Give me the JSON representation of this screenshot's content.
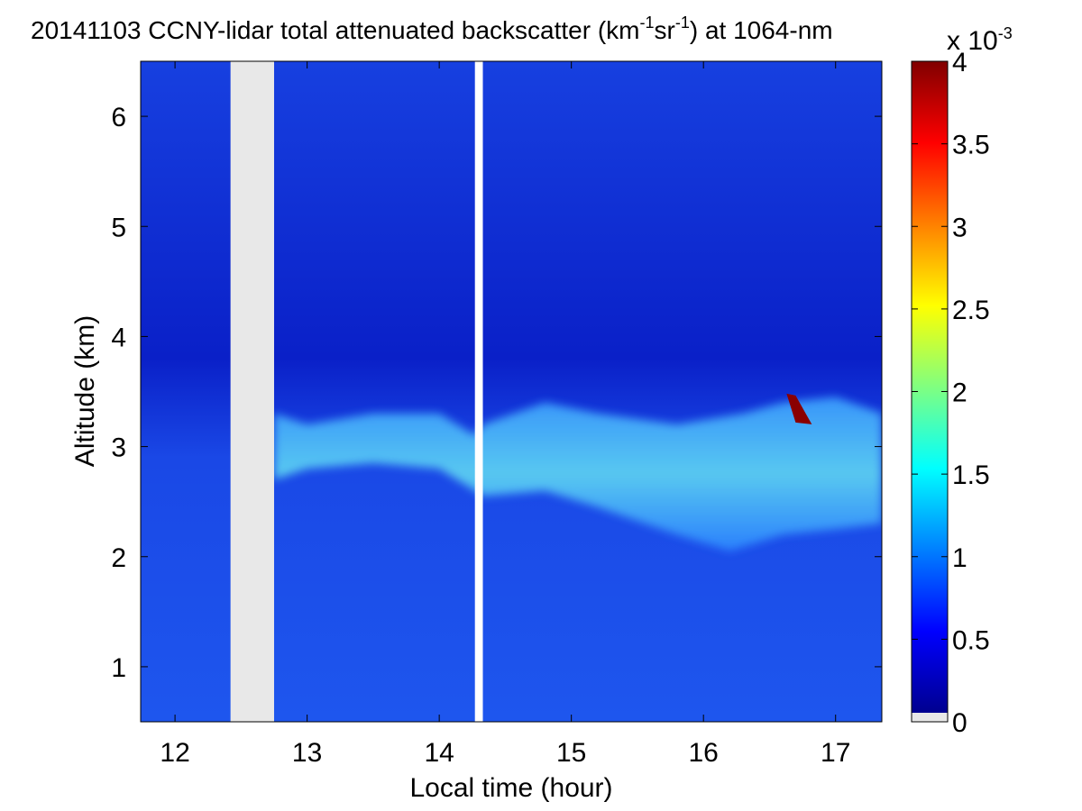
{
  "chart_data": {
    "type": "heatmap",
    "title": {
      "date": "20141103",
      "prefix": "CCNY-lidar total attenuated backscatter (km",
      "sup1": "-1",
      "mid": "sr",
      "sup2": "-1",
      "suffix": ") at 1064-nm"
    },
    "xlabel": "Local time (hour)",
    "ylabel": "Altitude (km)",
    "xlim": [
      11.74,
      17.35
    ],
    "ylim": [
      0.5,
      6.5
    ],
    "x_ticks": [
      12,
      13,
      14,
      15,
      16,
      17
    ],
    "y_ticks": [
      1,
      2,
      3,
      4,
      5,
      6
    ],
    "data_gaps_hours": [
      [
        12.42,
        12.75
      ],
      [
        14.27,
        14.33
      ]
    ],
    "colorbar": {
      "colormap": "jet",
      "range": [
        0,
        4
      ],
      "ticks": [
        "0",
        "0.5",
        "1",
        "1.5",
        "2",
        "2.5",
        "3",
        "3.5",
        "4"
      ],
      "tick_values": [
        0,
        0.5,
        1,
        1.5,
        2,
        2.5,
        3,
        3.5,
        4
      ],
      "exponent_base": "x 10",
      "exponent_power": "-3",
      "nodata_color": "#e8e8e8"
    },
    "aerosol_layer_top_km": [
      [
        12.75,
        3.3
      ],
      [
        13.0,
        3.2
      ],
      [
        13.5,
        3.3
      ],
      [
        14.0,
        3.3
      ],
      [
        14.27,
        3.1
      ],
      [
        14.33,
        3.2
      ],
      [
        14.8,
        3.4
      ],
      [
        15.2,
        3.3
      ],
      [
        15.8,
        3.2
      ],
      [
        16.3,
        3.3
      ],
      [
        16.6,
        3.4
      ],
      [
        17.0,
        3.45
      ],
      [
        17.35,
        3.3
      ]
    ],
    "aerosol_layer_bottom_km": [
      [
        12.75,
        2.7
      ],
      [
        13.0,
        2.8
      ],
      [
        13.5,
        2.85
      ],
      [
        14.0,
        2.8
      ],
      [
        14.27,
        2.6
      ],
      [
        14.33,
        2.55
      ],
      [
        14.8,
        2.6
      ],
      [
        15.2,
        2.45
      ],
      [
        15.8,
        2.2
      ],
      [
        16.2,
        2.05
      ],
      [
        16.6,
        2.2
      ],
      [
        17.0,
        2.25
      ],
      [
        17.35,
        2.3
      ]
    ],
    "peak_feature": {
      "time_hour": 16.67,
      "altitude_km": 3.3,
      "value_e3": 4.0
    }
  }
}
